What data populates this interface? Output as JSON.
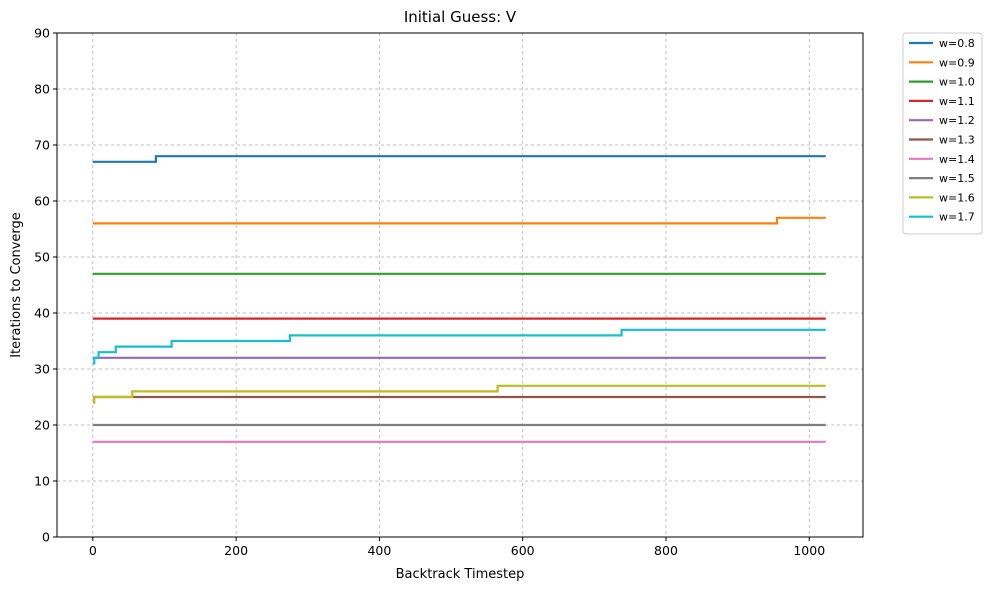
{
  "chart_data": {
    "type": "line",
    "title": "Initial Guess: V",
    "xlabel": "Backtrack Timestep",
    "ylabel": "Iterations to Converge",
    "xlim": [
      -50,
      1075
    ],
    "ylim": [
      0,
      90
    ],
    "xticks": [
      0,
      200,
      400,
      600,
      800,
      1000
    ],
    "yticks": [
      0,
      10,
      20,
      30,
      40,
      50,
      60,
      70,
      80,
      90
    ],
    "grid": true,
    "legend_position": "outside-top-right",
    "series": [
      {
        "name": "w=0.8",
        "color": "#1f77b4",
        "points": [
          [
            0,
            67
          ],
          [
            88,
            67
          ],
          [
            88,
            68
          ],
          [
            1023,
            68
          ]
        ]
      },
      {
        "name": "w=0.9",
        "color": "#ff7f0e",
        "points": [
          [
            0,
            56
          ],
          [
            955,
            56
          ],
          [
            955,
            57
          ],
          [
            1023,
            57
          ]
        ]
      },
      {
        "name": "w=1.0",
        "color": "#2ca02c",
        "points": [
          [
            0,
            47
          ],
          [
            1023,
            47
          ]
        ]
      },
      {
        "name": "w=1.1",
        "color": "#d62728",
        "points": [
          [
            0,
            39
          ],
          [
            1023,
            39
          ]
        ]
      },
      {
        "name": "w=1.2",
        "color": "#9467bd",
        "points": [
          [
            0,
            32
          ],
          [
            1023,
            32
          ]
        ]
      },
      {
        "name": "w=1.3",
        "color": "#8c564b",
        "points": [
          [
            0,
            25
          ],
          [
            1023,
            25
          ]
        ]
      },
      {
        "name": "w=1.4",
        "color": "#e377c2",
        "points": [
          [
            0,
            17
          ],
          [
            1023,
            17
          ]
        ]
      },
      {
        "name": "w=1.5",
        "color": "#7f7f7f",
        "points": [
          [
            0,
            20
          ],
          [
            1023,
            20
          ]
        ]
      },
      {
        "name": "w=1.6",
        "color": "#bcbd22",
        "points": [
          [
            0,
            24
          ],
          [
            2,
            24
          ],
          [
            2,
            25
          ],
          [
            55,
            25
          ],
          [
            55,
            26
          ],
          [
            565,
            26
          ],
          [
            565,
            27
          ],
          [
            1023,
            27
          ]
        ]
      },
      {
        "name": "w=1.7",
        "color": "#17becf",
        "points": [
          [
            0,
            31
          ],
          [
            2,
            31
          ],
          [
            2,
            32
          ],
          [
            8,
            32
          ],
          [
            8,
            33
          ],
          [
            32,
            33
          ],
          [
            32,
            34
          ],
          [
            110,
            34
          ],
          [
            110,
            35
          ],
          [
            275,
            35
          ],
          [
            275,
            36
          ],
          [
            738,
            36
          ],
          [
            738,
            37
          ],
          [
            1023,
            37
          ]
        ]
      }
    ]
  }
}
